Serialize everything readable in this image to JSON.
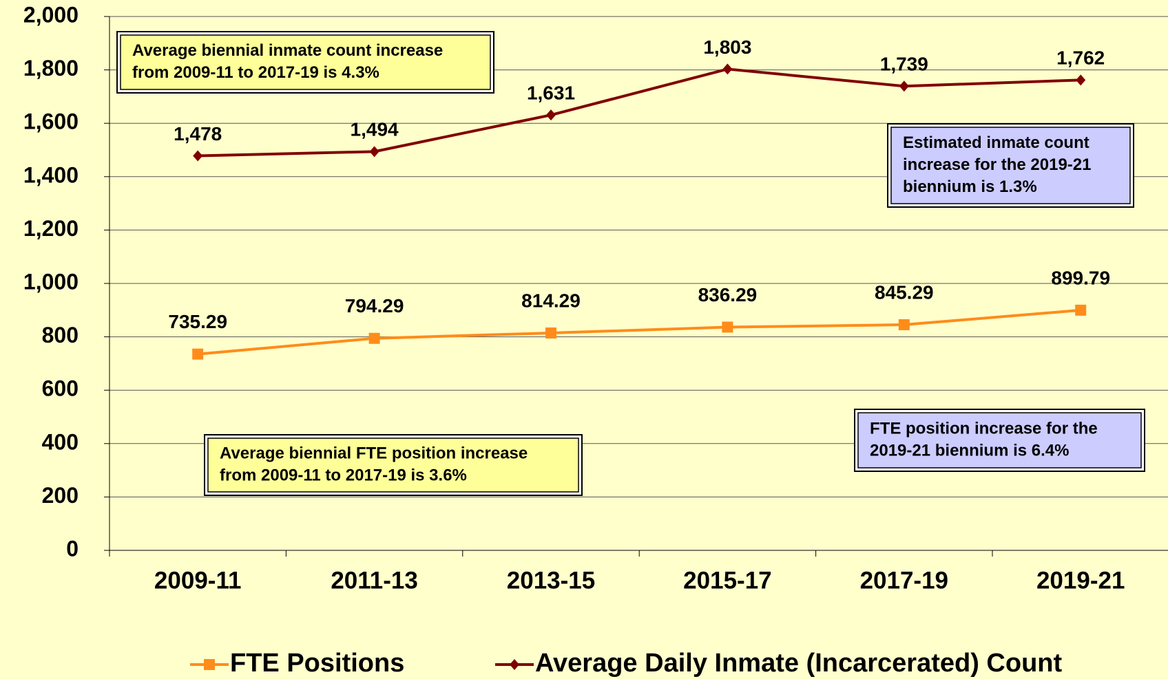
{
  "chart_data": {
    "type": "line",
    "categories": [
      "2009-11",
      "2011-13",
      "2013-15",
      "2015-17",
      "2017-19",
      "2019-21"
    ],
    "series": [
      {
        "name": "FTE Positions",
        "color": "#ff8c1a",
        "marker": "square",
        "values": [
          735.29,
          794.29,
          814.29,
          836.29,
          845.29,
          899.79
        ]
      },
      {
        "name": "Average Daily Inmate (Incarcerated) Count",
        "color": "#800000",
        "marker": "diamond",
        "values": [
          1478,
          1494,
          1631,
          1803,
          1739,
          1762
        ],
        "value_labels": [
          "1,478",
          "1,494",
          "1,631",
          "1,803",
          "1,739",
          "1,762"
        ]
      }
    ],
    "ylim": [
      0,
      2000
    ],
    "yticks": [
      0,
      200,
      400,
      600,
      800,
      {
        "value": 1000,
        "label": "1,000"
      },
      {
        "value": 1200,
        "label": "1,200"
      },
      {
        "value": 1400,
        "label": "1,400"
      },
      {
        "value": 1600,
        "label": "1,600"
      },
      {
        "value": 1800,
        "label": "1,800"
      },
      {
        "value": 2000,
        "label": "2,000"
      }
    ],
    "grid": true,
    "legend": "bottom",
    "annotations": [
      {
        "lines": [
          "Average biennial inmate count increase",
          "from 2009-11 to 2017-19 is 4.3%"
        ],
        "color": "#ffff99"
      },
      {
        "lines": [
          "Estimated  inmate  count",
          "increase  for  the  2019-21",
          "biennium is 1.3%"
        ],
        "color": "#ccccff"
      },
      {
        "lines": [
          "Average biennial FTE position increase",
          "from 2009-11 to 2017-19 is 3.6%"
        ],
        "color": "#ffff99"
      },
      {
        "lines": [
          "FTE  position  increase  for  the",
          "2019-21 biennium is 6.4%"
        ],
        "color": "#ccccff"
      }
    ]
  }
}
